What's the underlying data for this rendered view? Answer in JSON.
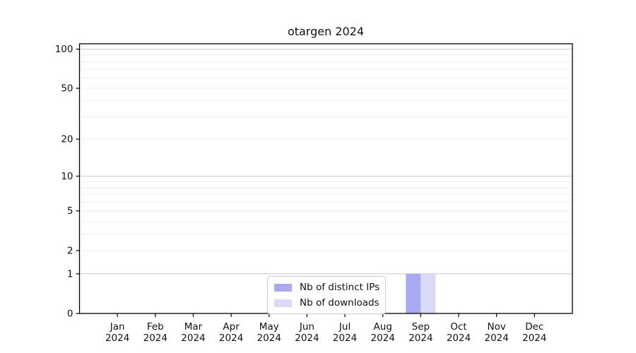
{
  "page": {
    "background_color": "#ffffff",
    "text_color": "#111111",
    "axis_color": "#000000"
  },
  "chart_data": {
    "type": "bar",
    "title": "otargen 2024",
    "xlabel": "",
    "ylabel": "",
    "x_year": "2024",
    "categories": [
      "Jan",
      "Feb",
      "Mar",
      "Apr",
      "May",
      "Jun",
      "Jul",
      "Aug",
      "Sep",
      "Oct",
      "Nov",
      "Dec"
    ],
    "series": [
      {
        "name": "Nb of distinct IPs",
        "color": "#a9a9f2",
        "values": [
          0,
          0,
          0,
          0,
          0,
          0,
          0,
          0,
          1,
          0,
          0,
          0
        ]
      },
      {
        "name": "Nb of downloads",
        "color": "#dadaf8",
        "values": [
          0,
          0,
          0,
          0,
          0,
          0,
          0,
          0,
          1,
          0,
          0,
          0
        ]
      }
    ],
    "yscale": "log1p",
    "ylim": [
      0,
      110
    ],
    "yticks": [
      0,
      1,
      2,
      5,
      10,
      20,
      50,
      100
    ],
    "grid": {
      "minor_values": [
        2,
        3,
        4,
        5,
        6,
        7,
        8,
        9,
        20,
        30,
        40,
        50,
        60,
        70,
        80,
        90
      ],
      "major_values": [
        1,
        10,
        100
      ],
      "minor_color": "#efefef",
      "major_color": "#c9c9c9"
    },
    "legend": {
      "position": "inside-bottom-center",
      "entries": [
        "Nb of distinct IPs",
        "Nb of downloads"
      ]
    }
  }
}
